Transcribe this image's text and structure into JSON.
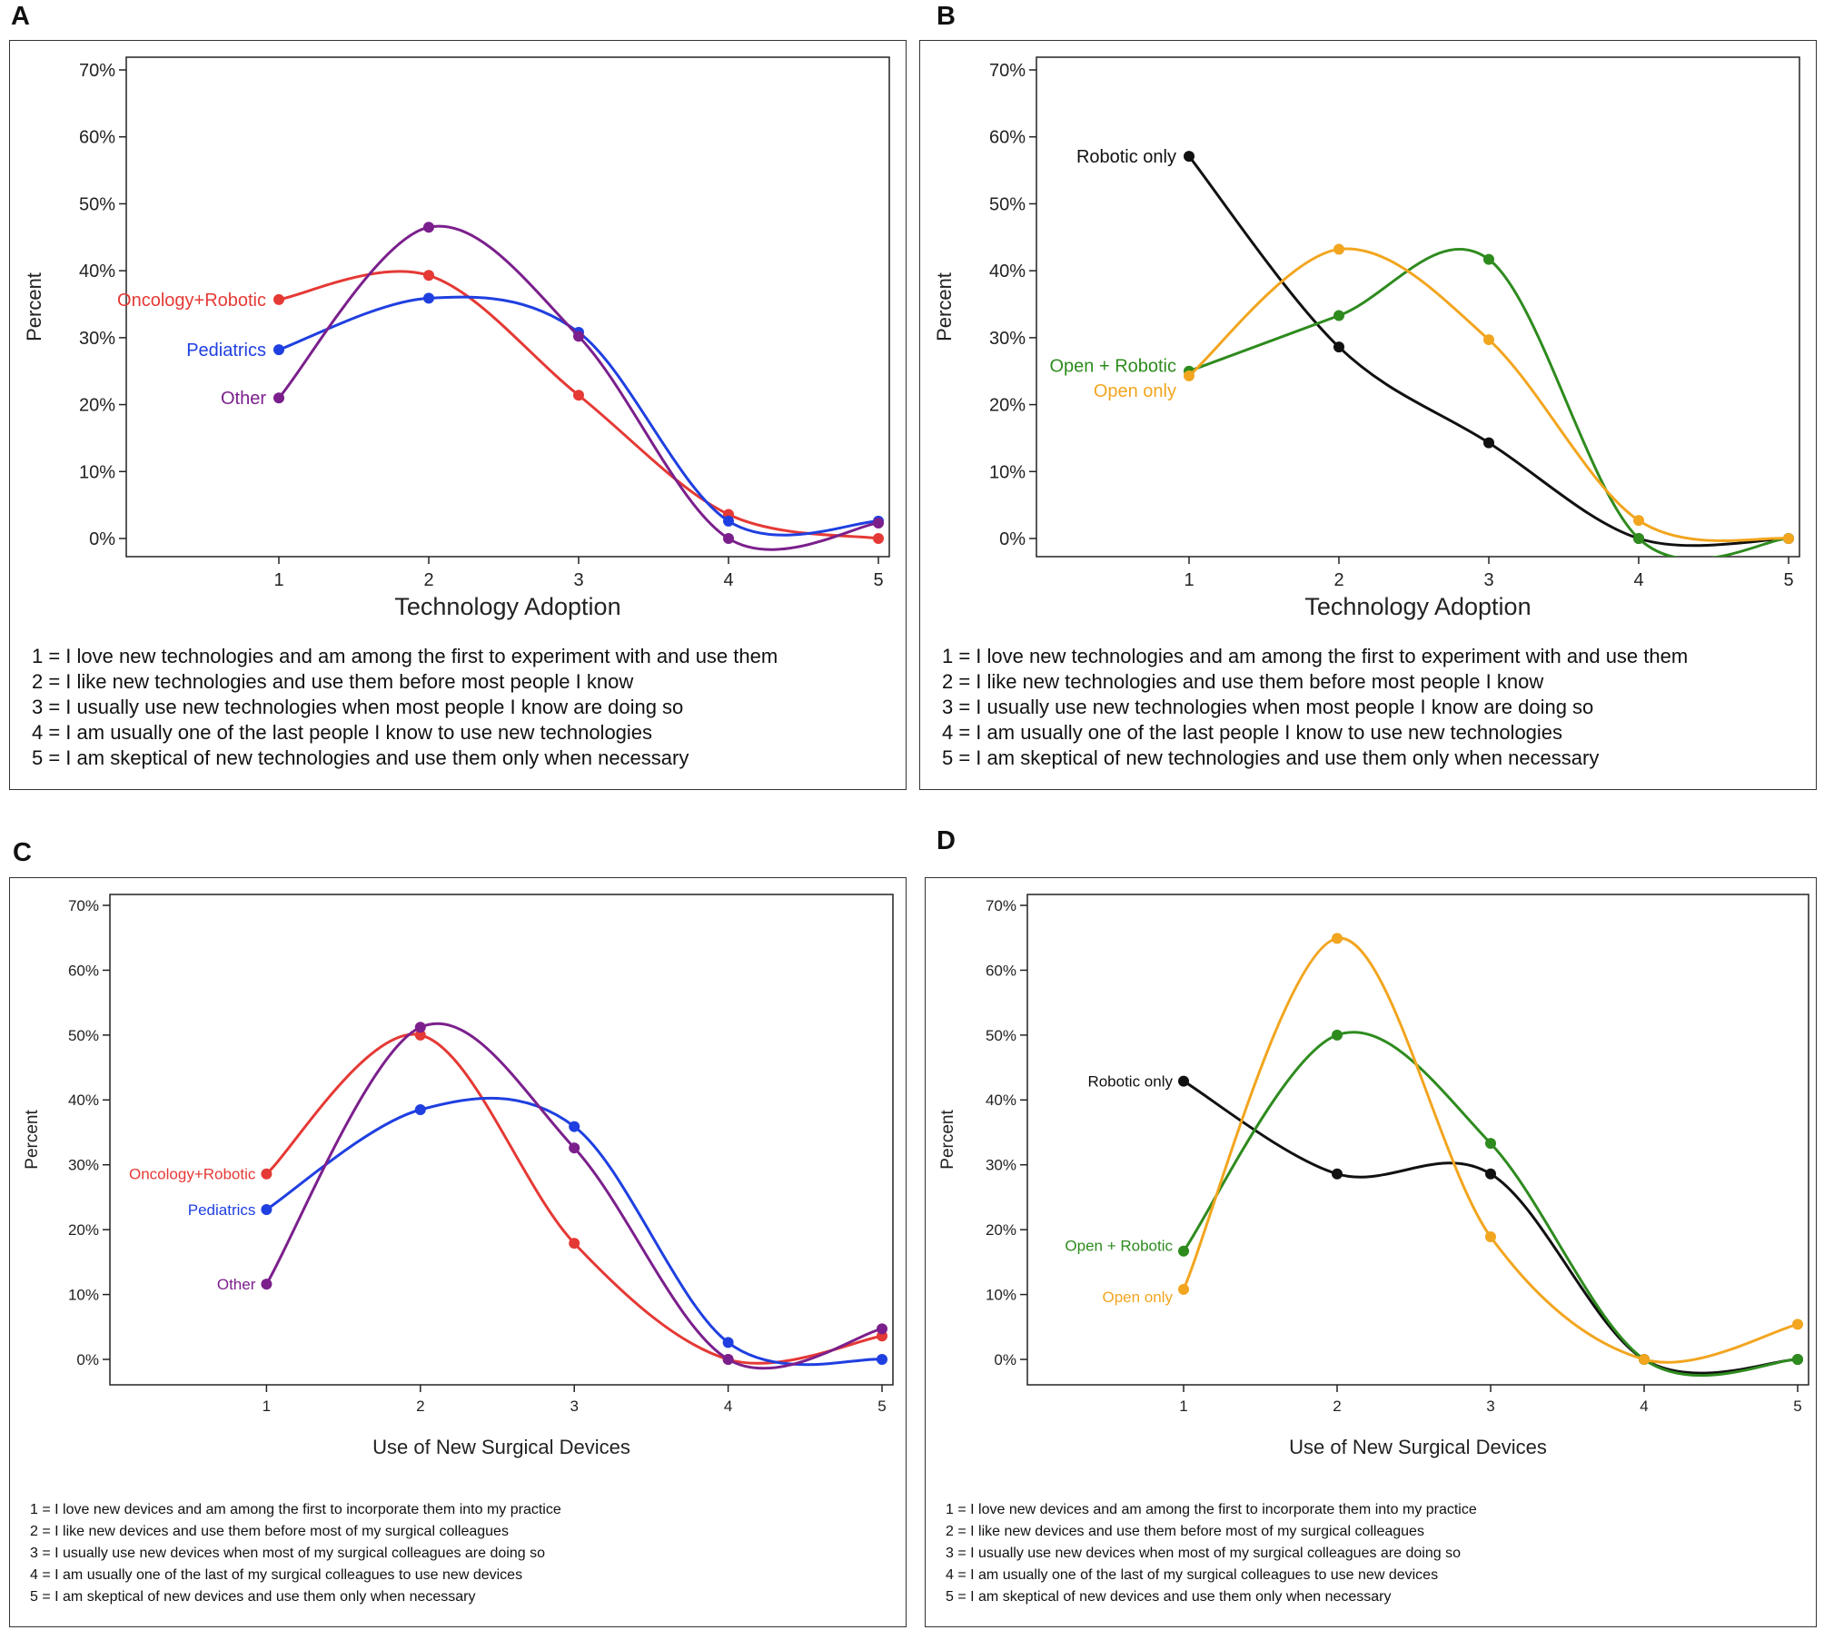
{
  "colors": {
    "oncology": "#e53935",
    "pediatrics": "#1f3fe0",
    "other": "#7b1f8c",
    "robotic_only": "#111111",
    "open_robotic": "#2e8b1e",
    "open_only": "#f2a51f"
  },
  "panels": [
    {
      "letter": "A"
    },
    {
      "letter": "B"
    },
    {
      "letter": "C"
    },
    {
      "letter": "D"
    }
  ],
  "chart_data": [
    {
      "panel": "A",
      "type": "line",
      "xlabel": "Technology Adoption",
      "ylabel": "Percent",
      "x": [
        1,
        2,
        3,
        4,
        5
      ],
      "ylim": [
        0,
        70
      ],
      "yticks": [
        "0%",
        "10%",
        "20%",
        "30%",
        "40%",
        "50%",
        "60%",
        "70%"
      ],
      "series": [
        {
          "name": "Oncology+Robotic",
          "color_key": "oncology",
          "values": [
            35.7,
            39.3,
            21.4,
            3.6,
            0
          ]
        },
        {
          "name": "Pediatrics",
          "color_key": "pediatrics",
          "values": [
            28.2,
            35.9,
            30.8,
            2.6,
            2.6
          ]
        },
        {
          "name": "Other",
          "color_key": "other",
          "values": [
            21.0,
            46.5,
            30.2,
            0,
            2.3
          ]
        }
      ],
      "legend_text": [
        "1 = I love new technologies and am among the first to experiment with and use them",
        "2 = I like new technologies and use them before most people I know",
        "3 = I usually use new technologies when most people I know are doing so",
        "4 = I am usually one of the last people I know to use new technologies",
        "5 = I am skeptical of new technologies and use them only when necessary"
      ]
    },
    {
      "panel": "B",
      "type": "line",
      "xlabel": "Technology Adoption",
      "ylabel": "Percent",
      "x": [
        1,
        2,
        3,
        4,
        5
      ],
      "ylim": [
        0,
        70
      ],
      "yticks": [
        "0%",
        "10%",
        "20%",
        "30%",
        "40%",
        "50%",
        "60%",
        "70%"
      ],
      "series": [
        {
          "name": "Robotic only",
          "color_key": "robotic_only",
          "values": [
            57.1,
            28.6,
            14.3,
            0,
            0
          ]
        },
        {
          "name": "Open + Robotic",
          "color_key": "open_robotic",
          "values": [
            25.0,
            33.3,
            41.7,
            0,
            0
          ]
        },
        {
          "name": "Open only",
          "color_key": "open_only",
          "values": [
            24.3,
            43.2,
            29.7,
            2.7,
            0
          ]
        }
      ],
      "legend_text": [
        "1 = I love new technologies and am among the first to experiment with and use them",
        "2 = I like new technologies and use them before most people I know",
        "3 = I usually use new technologies when most people I know are doing so",
        "4 = I am usually one of the last people I know to use new technologies",
        "5 = I am skeptical of new technologies and use them only when necessary"
      ]
    },
    {
      "panel": "C",
      "type": "line",
      "xlabel": "Use of New Surgical Devices",
      "ylabel": "Percent",
      "x": [
        1,
        2,
        3,
        4,
        5
      ],
      "ylim": [
        0,
        70
      ],
      "yticks": [
        "0%",
        "10%",
        "20%",
        "30%",
        "40%",
        "50%",
        "60%",
        "70%"
      ],
      "series": [
        {
          "name": "Oncology+Robotic",
          "color_key": "oncology",
          "values": [
            28.6,
            50.0,
            17.9,
            0,
            3.6
          ]
        },
        {
          "name": "Pediatrics",
          "color_key": "pediatrics",
          "values": [
            23.1,
            38.5,
            35.9,
            2.6,
            0
          ]
        },
        {
          "name": "Other",
          "color_key": "other",
          "values": [
            11.6,
            51.2,
            32.6,
            0,
            4.7
          ]
        }
      ],
      "legend_text": [
        "1 = I love new devices and am among the first to incorporate them into my practice",
        "2 = I like new devices and use them before most of my surgical colleagues",
        "3 = I usually use new devices when most of my surgical colleagues are doing so",
        "4 = I am usually one of the last of my surgical colleagues to use new devices",
        "5 = I am skeptical of new devices and use them only when necessary"
      ]
    },
    {
      "panel": "D",
      "type": "line",
      "xlabel": "Use of New Surgical Devices",
      "ylabel": "Percent",
      "x": [
        1,
        2,
        3,
        4,
        5
      ],
      "ylim": [
        0,
        70
      ],
      "yticks": [
        "0%",
        "10%",
        "20%",
        "30%",
        "40%",
        "50%",
        "60%",
        "70%"
      ],
      "series": [
        {
          "name": "Robotic only",
          "color_key": "robotic_only",
          "values": [
            42.9,
            28.6,
            28.6,
            0,
            0
          ]
        },
        {
          "name": "Open + Robotic",
          "color_key": "open_robotic",
          "values": [
            16.7,
            50.0,
            33.3,
            0,
            0
          ]
        },
        {
          "name": "Open only",
          "color_key": "open_only",
          "values": [
            10.8,
            64.9,
            18.9,
            0,
            5.4
          ]
        }
      ],
      "legend_text": [
        "1 = I love new devices and am among the first to incorporate them into my practice",
        "2 = I like new devices and use them before most of my surgical colleagues",
        "3 = I usually use new devices when most of my surgical colleagues are doing so",
        "4 = I am usually one of the last of my surgical colleagues to use new devices",
        "5 = I am skeptical of new devices and use them only when necessary"
      ]
    }
  ]
}
